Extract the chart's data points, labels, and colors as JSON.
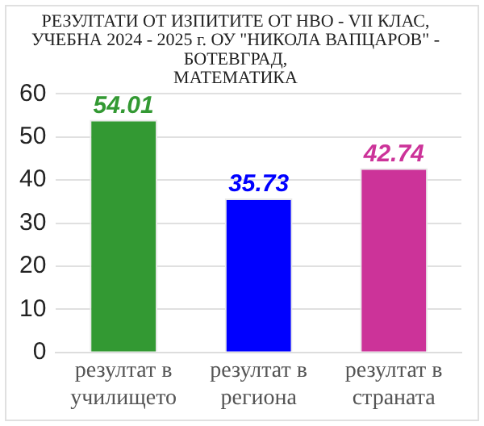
{
  "chart_data": {
    "type": "bar",
    "title": "РЕЗУЛТАТИ ОТ ИЗПИТИТЕ ОТ НВО - VII КЛАС,\nУЧЕБНА 2024 - 2025 г. ОУ \"НИКОЛА ВАПЦАРОВ\" -\nБОТЕВГРАД,\nМАТЕМАТИКА",
    "categories": [
      "резултат в училището",
      "резултат в региона",
      "резултат в страната"
    ],
    "values": [
      54.01,
      35.73,
      42.74
    ],
    "colors": [
      "#339933",
      "#0000ff",
      "#cc3399"
    ],
    "ylim": [
      0,
      60
    ],
    "yticks": [
      0,
      10,
      20,
      30,
      40,
      50,
      60
    ],
    "grid": "y",
    "data_labels": true,
    "legend": false
  }
}
